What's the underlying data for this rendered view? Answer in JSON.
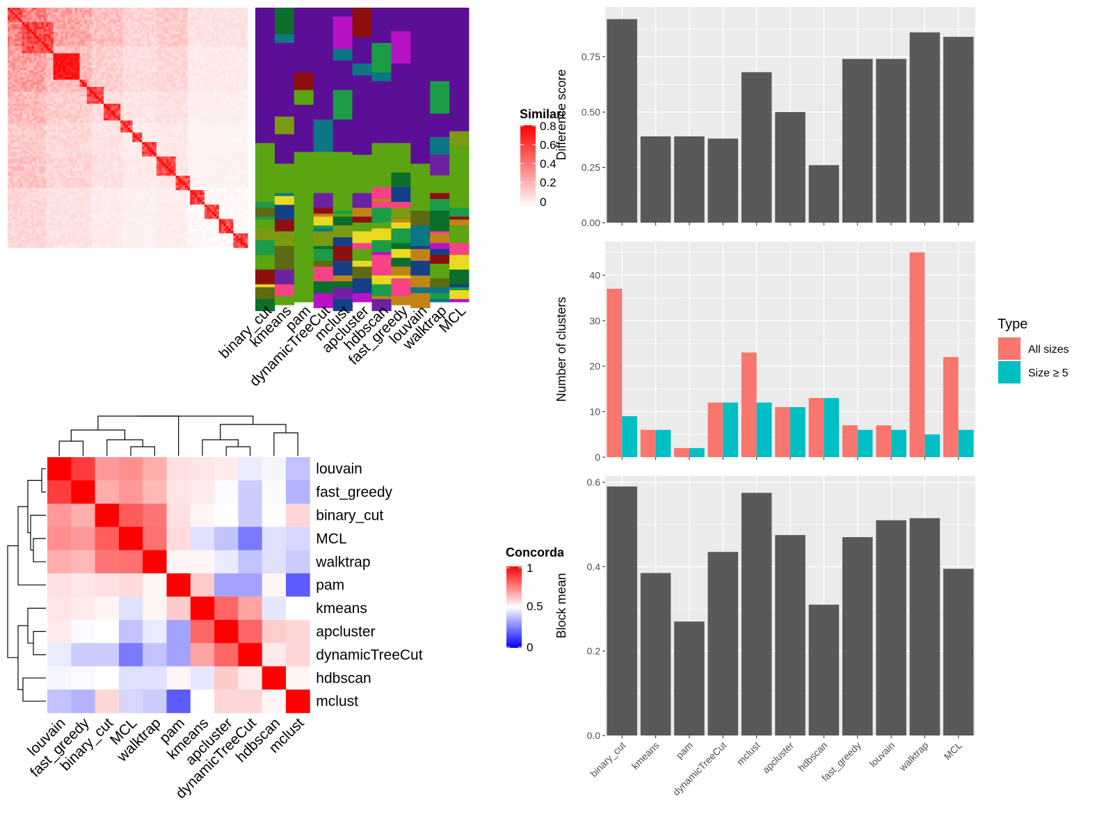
{
  "method_names": [
    "binary_cut",
    "kmeans",
    "pam",
    "dynamicTreeCut",
    "mclust",
    "apcluster",
    "hdbscan",
    "fast_greedy",
    "louvain",
    "walktrap",
    "MCL"
  ],
  "colors": {
    "panel_bg": "#EBEBEB",
    "grid": "#FFFFFF",
    "bar_dark": "#595959",
    "all_sizes": "#F8766D",
    "size_ge5": "#00BFC4",
    "heat_high": "#FF0000",
    "heat_mid": "#FFFFFF",
    "heat_low": "#0000FF"
  },
  "similarity_legend": {
    "title": "Similarity",
    "ticks": [
      "0.8",
      "0.6",
      "0.4",
      "0.2",
      "0"
    ]
  },
  "concordance_legend": {
    "title": "Concordance",
    "ticks": [
      "1",
      "0.5",
      "0"
    ]
  },
  "concordance": {
    "labels": [
      "louvain",
      "fast_greedy",
      "binary_cut",
      "MCL",
      "walktrap",
      "pam",
      "kmeans",
      "apcluster",
      "dynamicTreeCut",
      "hdbscan",
      "mclust"
    ],
    "matrix": [
      [
        1.0,
        0.88,
        0.7,
        0.72,
        0.66,
        0.56,
        0.55,
        0.54,
        0.46,
        0.48,
        0.38
      ],
      [
        0.88,
        1.0,
        0.66,
        0.7,
        0.64,
        0.55,
        0.54,
        0.49,
        0.4,
        0.49,
        0.35
      ],
      [
        0.7,
        0.66,
        1.0,
        0.82,
        0.77,
        0.56,
        0.52,
        0.5,
        0.4,
        0.5,
        0.58
      ],
      [
        0.72,
        0.7,
        0.82,
        1.0,
        0.78,
        0.57,
        0.44,
        0.38,
        0.24,
        0.44,
        0.42
      ],
      [
        0.66,
        0.64,
        0.77,
        0.78,
        1.0,
        0.52,
        0.52,
        0.46,
        0.38,
        0.44,
        0.4
      ],
      [
        0.56,
        0.55,
        0.56,
        0.57,
        0.52,
        1.0,
        0.6,
        0.32,
        0.32,
        0.52,
        0.18
      ],
      [
        0.55,
        0.54,
        0.52,
        0.44,
        0.52,
        0.6,
        1.0,
        0.8,
        0.68,
        0.45,
        0.5
      ],
      [
        0.54,
        0.49,
        0.5,
        0.38,
        0.46,
        0.32,
        0.8,
        1.0,
        0.8,
        0.6,
        0.58
      ],
      [
        0.46,
        0.4,
        0.4,
        0.24,
        0.38,
        0.32,
        0.68,
        0.8,
        1.0,
        0.54,
        0.58
      ],
      [
        0.48,
        0.49,
        0.5,
        0.44,
        0.44,
        0.52,
        0.45,
        0.6,
        0.54,
        1.0,
        0.52
      ],
      [
        0.38,
        0.35,
        0.58,
        0.42,
        0.4,
        0.18,
        0.5,
        0.58,
        0.58,
        0.52,
        1.0
      ]
    ]
  },
  "chart_data": [
    {
      "type": "bar",
      "ylabel": "Difference score",
      "categories": [
        "binary_cut",
        "kmeans",
        "pam",
        "dynamicTreeCut",
        "mclust",
        "apcluster",
        "hdbscan",
        "fast_greedy",
        "louvain",
        "walktrap",
        "MCL"
      ],
      "values": [
        0.92,
        0.39,
        0.39,
        0.38,
        0.68,
        0.5,
        0.26,
        0.74,
        0.74,
        0.86,
        0.84
      ],
      "ylim": [
        0,
        0.975
      ],
      "yticks": [
        "0.00",
        "0.25",
        "0.50",
        "0.75"
      ],
      "grid": true
    },
    {
      "type": "bar",
      "ylabel": "Number of clusters",
      "categories": [
        "binary_cut",
        "kmeans",
        "pam",
        "dynamicTreeCut",
        "mclust",
        "apcluster",
        "hdbscan",
        "fast_greedy",
        "louvain",
        "walktrap",
        "MCL"
      ],
      "series": [
        {
          "name": "All sizes",
          "values": [
            37,
            6,
            2,
            12,
            23,
            11,
            13,
            7,
            7,
            45,
            22
          ]
        },
        {
          "name": "Size ≥ 5",
          "values": [
            9,
            6,
            2,
            12,
            12,
            11,
            13,
            6,
            6,
            5,
            6
          ]
        }
      ],
      "ylim": [
        0,
        47.4
      ],
      "yticks": [
        "0",
        "10",
        "20",
        "30",
        "40"
      ],
      "legend_title": "Type",
      "legend_position": "right",
      "grid": true
    },
    {
      "type": "bar",
      "ylabel": "Block mean",
      "xlabels": [
        "binary_cut",
        "kmeans",
        "pam",
        "dynamicTreeCut",
        "mclust",
        "apcluster",
        "hdbscan",
        "fast_greedy",
        "louvain",
        "walktrap",
        "MCL"
      ],
      "values": [
        0.59,
        0.385,
        0.27,
        0.435,
        0.575,
        0.475,
        0.31,
        0.47,
        0.51,
        0.515,
        0.395
      ],
      "ylim": [
        0,
        0.615
      ],
      "yticks": [
        "0.0",
        "0.2",
        "0.4",
        "0.6"
      ],
      "grid": true
    }
  ]
}
